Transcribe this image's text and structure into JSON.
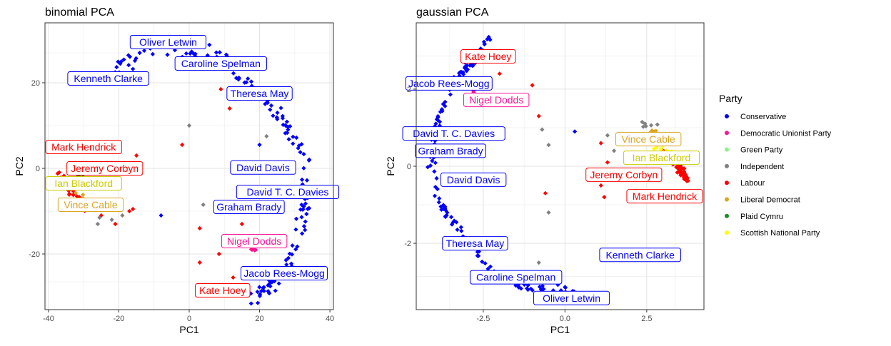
{
  "party_colors": {
    "Conservative": "#0000FF",
    "Democratic Unionist Party": "#FF1493",
    "Green Party": "#90EE90",
    "Independent": "#808080",
    "Labour": "#FF0000",
    "Liberal Democrat": "#DAA520",
    "Plaid Cymru": "#228B22",
    "Scottish National Party": "#FFFF00"
  },
  "legend": {
    "title": "Party",
    "placement": "right",
    "items": [
      "Conservative",
      "Democratic Unionist Party",
      "Green Party",
      "Independent",
      "Labour",
      "Liberal Democrat",
      "Plaid Cymru",
      "Scottish National Party"
    ]
  },
  "chart_data": [
    {
      "type": "scatter",
      "title": "binomial PCA",
      "xlabel": "PC1",
      "ylabel": "PC2",
      "xlim": [
        -41,
        41
      ],
      "ylim": [
        -33,
        34
      ],
      "xticks": [
        -40,
        -20,
        0,
        20,
        40
      ],
      "yticks": [
        -20,
        0,
        20
      ],
      "grid": true,
      "clusters": [
        {
          "party": "Conservative",
          "path": [
            [
              -20.5,
              23.3
            ],
            [
              -12,
              27.6
            ],
            [
              2,
              26.8
            ],
            [
              8,
              26.5
            ],
            [
              14,
              22.3
            ],
            [
              20,
              17.5
            ],
            [
              24,
              14
            ],
            [
              28,
              9
            ],
            [
              33,
              3
            ],
            [
              33,
              -2
            ],
            [
              33,
              -8
            ],
            [
              31,
              -16
            ],
            [
              28,
              -22
            ],
            [
              25,
              -26
            ],
            [
              22,
              -28.5
            ],
            [
              17,
              -30.5
            ]
          ],
          "count": 160,
          "spread": 1.8
        },
        {
          "party": "Labour",
          "path": [
            [
              -37,
              -1
            ],
            [
              -35,
              -3.5
            ],
            [
              -33,
              -6
            ],
            [
              -31,
              -8.5
            ],
            [
              -29,
              -9.5
            ]
          ],
          "count": 40,
          "spread": 1.3
        },
        {
          "party": "Liberal Democrat",
          "path": [
            [
              -34,
              -5
            ],
            [
              -31,
              -6.5
            ],
            [
              -29,
              -8
            ]
          ],
          "count": 10,
          "spread": 0.8
        },
        {
          "party": "Green Party",
          "path": [
            [
              -33,
              -2.5
            ]
          ],
          "count": 1,
          "spread": 0.1
        },
        {
          "party": "Plaid Cymru",
          "path": [
            [
              -32,
              -1.5
            ],
            [
              -30,
              -2
            ]
          ],
          "count": 4,
          "spread": 0.5
        },
        {
          "party": "Scottish National Party",
          "path": [
            [
              -33,
              -3
            ],
            [
              -30,
              -4
            ]
          ],
          "count": 8,
          "spread": 0.7
        },
        {
          "party": "Democratic Unionist Party",
          "path": [
            [
              17.5,
              -18.5
            ],
            [
              19,
              -19.5
            ]
          ],
          "count": 6,
          "spread": 0.5
        }
      ],
      "points": [
        {
          "party": "Labour",
          "x": 9,
          "y": 18.5
        },
        {
          "party": "Labour",
          "x": 11.5,
          "y": 14
        },
        {
          "party": "Labour",
          "x": -2,
          "y": 5.5
        },
        {
          "party": "Labour",
          "x": -15,
          "y": 3
        },
        {
          "party": "Labour",
          "x": -16,
          "y": 0
        },
        {
          "party": "Labour",
          "x": 3,
          "y": -14
        },
        {
          "party": "Labour",
          "x": 3,
          "y": -22
        },
        {
          "party": "Labour",
          "x": -17,
          "y": -10
        },
        {
          "party": "Labour",
          "x": -21,
          "y": -13
        },
        {
          "party": "Labour",
          "x": -16,
          "y": -9.5
        },
        {
          "party": "Labour",
          "x": 12.5,
          "y": -25.5
        },
        {
          "party": "Labour",
          "x": 15,
          "y": -13
        },
        {
          "party": "Labour",
          "x": 8.5,
          "y": -20
        },
        {
          "party": "Labour",
          "x": -25,
          "y": -11
        },
        {
          "party": "Independent",
          "x": 0,
          "y": 10
        },
        {
          "party": "Independent",
          "x": 22,
          "y": 7.5
        },
        {
          "party": "Independent",
          "x": 4,
          "y": -8.5
        },
        {
          "party": "Independent",
          "x": -22,
          "y": -12
        },
        {
          "party": "Independent",
          "x": -26,
          "y": -13
        },
        {
          "party": "Independent",
          "x": -19,
          "y": -11
        },
        {
          "party": "Independent",
          "x": -25.5,
          "y": -11.5
        },
        {
          "party": "Conservative",
          "x": -8,
          "y": -11
        },
        {
          "party": "Conservative",
          "x": 20,
          "y": 5.5
        }
      ],
      "labels": [
        {
          "text": "Oliver Letwin",
          "party": "Conservative",
          "x": -6,
          "y": 29.5
        },
        {
          "text": "Caroline Spelman",
          "party": "Conservative",
          "x": 9,
          "y": 24.5
        },
        {
          "text": "Kenneth Clarke",
          "party": "Conservative",
          "x": -23,
          "y": 21
        },
        {
          "text": "Theresa May",
          "party": "Conservative",
          "x": 20,
          "y": 17.5
        },
        {
          "text": "Mark Hendrick",
          "party": "Labour",
          "x": -30,
          "y": 5
        },
        {
          "text": "Jeremy Corbyn",
          "party": "Labour",
          "x": -24,
          "y": 0
        },
        {
          "text": "Ian Blackford",
          "party": "Scottish National Party",
          "x": -30,
          "y": -3.5
        },
        {
          "text": "Vince Cable",
          "party": "Liberal Democrat",
          "x": -28,
          "y": -8.5
        },
        {
          "text": "David Davis",
          "party": "Conservative",
          "x": 21,
          "y": 0.2
        },
        {
          "text": "David T. C. Davies",
          "party": "Conservative",
          "x": 28,
          "y": -5.5
        },
        {
          "text": "Graham Brady",
          "party": "Conservative",
          "x": 17,
          "y": -9
        },
        {
          "text": "Nigel Dodds",
          "party": "Democratic Unionist Party",
          "x": 18.5,
          "y": -17
        },
        {
          "text": "Jacob Rees-Mogg",
          "party": "Conservative",
          "x": 27,
          "y": -24.5
        },
        {
          "text": "Kate Hoey",
          "party": "Labour",
          "x": 9.5,
          "y": -28.5
        }
      ]
    },
    {
      "type": "scatter",
      "title": "gaussian PCA",
      "xlabel": "PC1",
      "ylabel": "PC2",
      "xlim": [
        -4.55,
        4.25
      ],
      "ylim": [
        -3.72,
        3.72
      ],
      "xticks": [
        -2.5,
        0.0,
        2.5
      ],
      "xtick_labels": [
        "-2.5",
        "0.0",
        "2.5"
      ],
      "yticks": [
        -2,
        0,
        2
      ],
      "grid": true,
      "clusters": [
        {
          "party": "Conservative",
          "path": [
            [
              -2.2,
              3.5
            ],
            [
              -2.8,
              2.7
            ],
            [
              -3.4,
              2.3
            ],
            [
              -3.8,
              1.5
            ],
            [
              -4.0,
              0.8
            ],
            [
              -4.1,
              0.0
            ],
            [
              -3.9,
              -0.8
            ],
            [
              -3.5,
              -1.4
            ],
            [
              -3.0,
              -1.9
            ],
            [
              -2.5,
              -2.5
            ],
            [
              -2.0,
              -2.9
            ],
            [
              -1.3,
              -3.1
            ],
            [
              -0.5,
              -3.2
            ],
            [
              0.5,
              -3.3
            ]
          ],
          "count": 170,
          "spread": 0.13
        },
        {
          "party": "Labour",
          "path": [
            [
              3.0,
              0.4
            ],
            [
              3.4,
              0.1
            ],
            [
              3.6,
              -0.2
            ],
            [
              3.7,
              -0.3
            ]
          ],
          "count": 80,
          "spread": 0.12
        },
        {
          "party": "Liberal Democrat",
          "path": [
            [
              2.6,
              0.9
            ],
            [
              3.0,
              0.8
            ]
          ],
          "count": 10,
          "spread": 0.1
        },
        {
          "party": "Scottish National Party",
          "path": [
            [
              2.8,
              0.5
            ],
            [
              3.2,
              0.3
            ]
          ],
          "count": 10,
          "spread": 0.1
        },
        {
          "party": "Plaid Cymru",
          "path": [
            [
              2.9,
              0.6
            ]
          ],
          "count": 3,
          "spread": 0.06
        },
        {
          "party": "Independent",
          "path": [
            [
              2.3,
              1.1
            ],
            [
              2.8,
              1.0
            ]
          ],
          "count": 6,
          "spread": 0.1
        },
        {
          "party": "Democratic Unionist Party",
          "path": [
            [
              -2.8,
              1.9
            ]
          ],
          "count": 3,
          "spread": 0.05
        }
      ],
      "points": [
        {
          "party": "Labour",
          "x": -1.0,
          "y": 2.1
        },
        {
          "party": "Labour",
          "x": -0.8,
          "y": 1.3
        },
        {
          "party": "Labour",
          "x": -0.6,
          "y": -0.7
        },
        {
          "party": "Labour",
          "x": 1.1,
          "y": 0.6
        },
        {
          "party": "Labour",
          "x": 1.1,
          "y": -0.5
        },
        {
          "party": "Labour",
          "x": 1.3,
          "y": 0.1
        },
        {
          "party": "Labour",
          "x": -2.0,
          "y": 2.4
        },
        {
          "party": "Labour",
          "x": 1.2,
          "y": -0.8
        },
        {
          "party": "Independent",
          "x": -0.7,
          "y": 0.95
        },
        {
          "party": "Independent",
          "x": -0.5,
          "y": 0.55
        },
        {
          "party": "Independent",
          "x": -0.5,
          "y": -1.2
        },
        {
          "party": "Independent",
          "x": -0.8,
          "y": -2.5
        },
        {
          "party": "Independent",
          "x": 1.3,
          "y": 0.8
        },
        {
          "party": "Independent",
          "x": 1.5,
          "y": 0.4
        },
        {
          "party": "Conservative",
          "x": 0.3,
          "y": 0.9
        },
        {
          "party": "Conservative",
          "x": 1.9,
          "y": -2.4
        }
      ],
      "labels": [
        {
          "text": "Kate Hoey",
          "party": "Labour",
          "x": -2.35,
          "y": 2.85
        },
        {
          "text": "Jacob Rees-Mogg",
          "party": "Conservative",
          "x": -3.55,
          "y": 2.15
        },
        {
          "text": "Nigel Dodds",
          "party": "Democratic Unionist Party",
          "x": -2.1,
          "y": 1.72
        },
        {
          "text": "David T. C. Davies",
          "party": "Conservative",
          "x": -3.4,
          "y": 0.85
        },
        {
          "text": "Graham Brady",
          "party": "Conservative",
          "x": -3.5,
          "y": 0.4
        },
        {
          "text": "David Davis",
          "party": "Conservative",
          "x": -2.8,
          "y": -0.35
        },
        {
          "text": "Vince Cable",
          "party": "Liberal Democrat",
          "x": 2.55,
          "y": 0.7
        },
        {
          "text": "Ian Blackford",
          "party": "Scottish National Party",
          "x": 2.95,
          "y": 0.22
        },
        {
          "text": "Jeremy Corbyn",
          "party": "Labour",
          "x": 1.8,
          "y": -0.22
        },
        {
          "text": "Mark Hendrick",
          "party": "Labour",
          "x": 3.05,
          "y": -0.78
        },
        {
          "text": "Theresa May",
          "party": "Conservative",
          "x": -2.75,
          "y": -2.0
        },
        {
          "text": "Kenneth Clarke",
          "party": "Conservative",
          "x": 2.3,
          "y": -2.3
        },
        {
          "text": "Caroline Spelman",
          "party": "Conservative",
          "x": -1.5,
          "y": -2.88
        },
        {
          "text": "Oliver Letwin",
          "party": "Conservative",
          "x": 0.2,
          "y": -3.42
        }
      ]
    }
  ]
}
